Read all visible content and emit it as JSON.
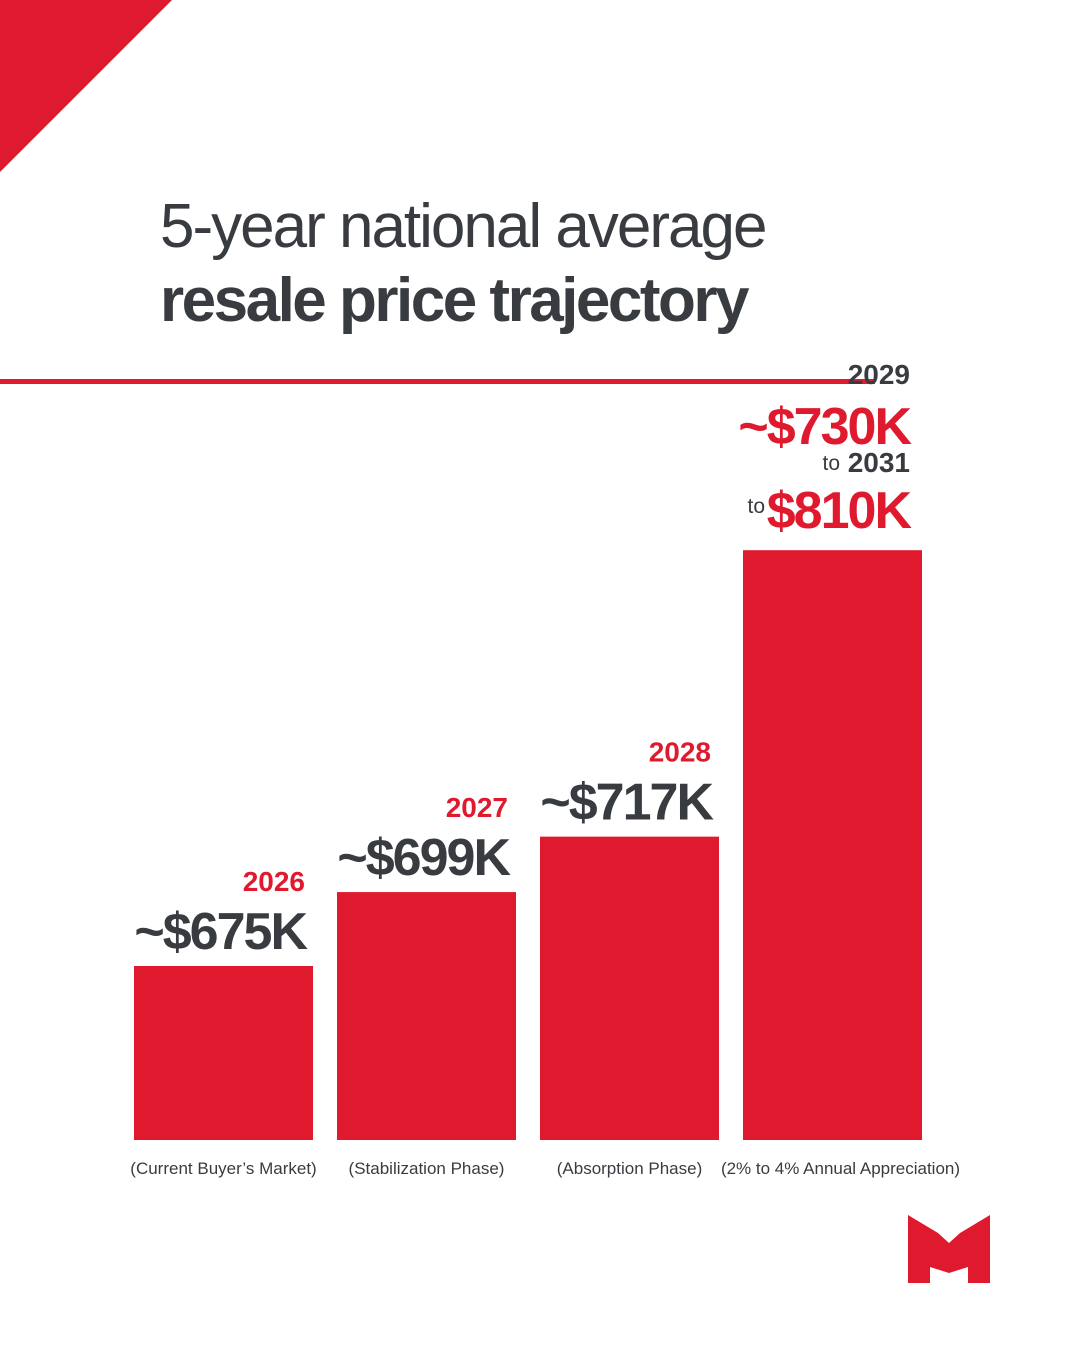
{
  "title": {
    "line1": "5-year national average",
    "line2": "resale price trajectory"
  },
  "colors": {
    "accent": "#e01a2e",
    "text": "#383c41",
    "background": "#ffffff"
  },
  "icons": {
    "corner": "red-triangle-corner",
    "logo": "m-logo-icon"
  },
  "chart_data": {
    "type": "bar",
    "categories": [
      "2026",
      "2027",
      "2028",
      "2029"
    ],
    "values": [
      675,
      699,
      717,
      810
    ],
    "units": "thousands of dollars",
    "grid": false,
    "axes_visible": false,
    "bars": [
      {
        "year": "2026",
        "price_label": "~$675K",
        "phase": "(Current Buyer’s Market)"
      },
      {
        "year": "2027",
        "price_label": "~$699K",
        "phase": "(Stabilization Phase)"
      },
      {
        "year": "2028",
        "price_label": "~$717K",
        "phase": "(Absorption Phase)"
      },
      {
        "year": "2029",
        "price_label": "~$730K",
        "connector": "to",
        "end_year": "2031",
        "end_connector": "to",
        "end_price_label": "$810K",
        "phase": "(2% to 4% Annual Appreciation)"
      }
    ]
  }
}
